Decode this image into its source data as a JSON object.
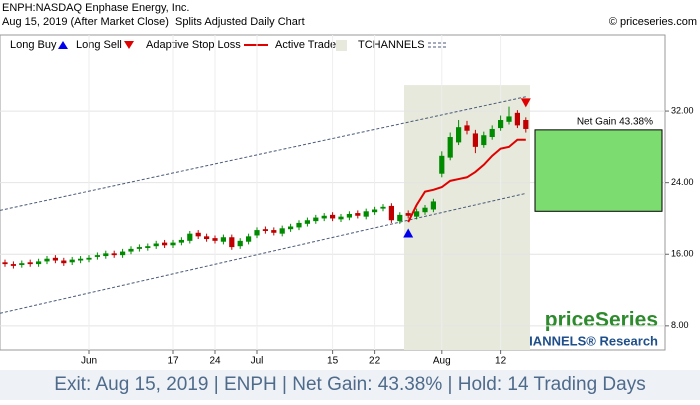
{
  "chart_data": {
    "type": "candlestick",
    "title": "ENPH:NASDAQ Enphase Energy, Inc.",
    "subtitle": "Aug 15, 2019 (After Market Close)  Splits Adjusted Daily Chart",
    "copyright": "© priceseries.com",
    "watermark": "priceSeries",
    "watermark_sub": "TCHANNELS® Research",
    "footer": "Exit: Aug 15, 2019 | ENPH | Net Gain: 43.38% | Hold: 14 Trading Days",
    "categories": [
      null,
      null,
      null,
      null,
      null,
      null,
      null,
      null,
      null,
      null,
      "Jun",
      null,
      null,
      null,
      null,
      null,
      null,
      null,
      null,
      null,
      "17",
      null,
      null,
      null,
      null,
      "24",
      null,
      null,
      null,
      null,
      "Jul",
      null,
      null,
      null,
      null,
      null,
      null,
      null,
      null,
      "15",
      null,
      null,
      null,
      null,
      "22",
      null,
      null,
      null,
      null,
      null,
      null,
      null,
      "Aug",
      null,
      null,
      null,
      null,
      null,
      null,
      "12",
      null,
      null,
      null
    ],
    "open": [
      15.1,
      14.9,
      14.8,
      15.1,
      14.9,
      15.2,
      15.6,
      15.3,
      15.1,
      15.3,
      15.4,
      15.7,
      15.8,
      16.1,
      15.9,
      16.3,
      16.6,
      16.7,
      16.9,
      17.3,
      17.0,
      17.3,
      17.5,
      18.4,
      18.0,
      17.8,
      17.4,
      17.9,
      16.9,
      17.4,
      18.1,
      18.8,
      18.7,
      18.3,
      18.8,
      19.0,
      19.4,
      19.7,
      20.0,
      20.4,
      19.9,
      20.1,
      20.6,
      20.2,
      20.7,
      21.1,
      21.4,
      19.7,
      20.6,
      20.2,
      20.7,
      21.0,
      25.0,
      26.8,
      28.5,
      30.4,
      29.5,
      28.2,
      29.1,
      30.1,
      30.8,
      31.8,
      31.0
    ],
    "high": [
      15.4,
      15.2,
      15.3,
      15.4,
      15.5,
      15.8,
      15.9,
      15.6,
      15.7,
      15.8,
      15.9,
      16.2,
      16.4,
      16.4,
      16.6,
      16.9,
      17.1,
      17.2,
      17.5,
      17.6,
      17.6,
      17.9,
      18.6,
      18.7,
      18.3,
      18.1,
      18.2,
      18.2,
      17.8,
      18.3,
      19.0,
      19.1,
      19.0,
      19.2,
      19.4,
      19.8,
      20.1,
      20.4,
      20.6,
      20.7,
      20.5,
      20.8,
      20.9,
      21.1,
      21.3,
      21.6,
      21.7,
      20.7,
      20.9,
      21.1,
      21.5,
      22.2,
      27.5,
      29.6,
      31.0,
      30.9,
      29.9,
      29.7,
      30.4,
      31.5,
      32.5,
      32.1,
      31.3
    ],
    "low": [
      14.6,
      14.4,
      14.5,
      14.6,
      14.6,
      14.9,
      15.0,
      14.7,
      14.8,
      15.0,
      15.1,
      15.4,
      15.5,
      15.6,
      15.6,
      16.0,
      16.3,
      16.4,
      16.6,
      16.7,
      16.7,
      17.0,
      17.2,
      17.7,
      17.4,
      17.2,
      17.1,
      16.5,
      16.6,
      17.1,
      17.8,
      18.3,
      18.1,
      18.0,
      18.5,
      18.7,
      19.1,
      19.4,
      19.7,
      19.7,
      19.6,
      19.8,
      20.0,
      19.9,
      20.4,
      20.8,
      19.5,
      19.4,
      20.0,
      19.9,
      20.4,
      20.7,
      24.6,
      26.5,
      28.2,
      29.4,
      27.3,
      27.9,
      28.8,
      29.8,
      30.5,
      30.1,
      29.6
    ],
    "close": [
      14.9,
      14.7,
      15.0,
      14.9,
      15.2,
      15.5,
      15.3,
      15.0,
      15.4,
      15.5,
      15.6,
      15.9,
      16.1,
      15.9,
      16.3,
      16.6,
      16.8,
      16.9,
      17.2,
      17.0,
      17.3,
      17.6,
      18.3,
      18.0,
      17.7,
      17.5,
      17.9,
      16.8,
      17.5,
      18.0,
      18.7,
      18.6,
      18.4,
      18.9,
      19.1,
      19.5,
      19.8,
      20.1,
      20.3,
      20.0,
      20.2,
      20.5,
      20.3,
      20.8,
      21.0,
      21.3,
      19.8,
      20.4,
      20.3,
      20.8,
      21.2,
      21.9,
      27.0,
      29.1,
      30.2,
      29.8,
      28.0,
      29.3,
      30.0,
      31.0,
      31.4,
      30.4,
      30.0
    ],
    "up_color": "#008a00",
    "down_color": "#c00000",
    "ylim": [
      5.3,
      40.5
    ],
    "yticks": [
      {
        "value": 32,
        "label": "32.00"
      },
      {
        "value": 24,
        "label": "24.00"
      },
      {
        "value": 16,
        "label": "16.00"
      },
      {
        "value": 8,
        "label": "8.00"
      }
    ],
    "grid": true,
    "stop_loss": {
      "name": "Adaptive Stop Loss",
      "color": "#e00000",
      "values": [
        null,
        null,
        null,
        null,
        null,
        null,
        null,
        null,
        null,
        null,
        null,
        null,
        null,
        null,
        null,
        null,
        null,
        null,
        null,
        null,
        null,
        null,
        null,
        null,
        null,
        null,
        null,
        null,
        null,
        null,
        null,
        null,
        null,
        null,
        null,
        null,
        null,
        null,
        null,
        null,
        null,
        null,
        null,
        null,
        null,
        null,
        null,
        null,
        19.6,
        21.5,
        23.0,
        23.2,
        23.5,
        24.2,
        24.4,
        24.6,
        25.2,
        26.0,
        27.0,
        27.8,
        28.0,
        28.8,
        28.8
      ]
    },
    "channel": {
      "name": "TCHANNELS",
      "color": "#4a5a78",
      "upper": [
        20.9,
        33.6
      ],
      "lower": [
        9.4,
        22.8
      ]
    },
    "active_trade": {
      "name": "Active Trade",
      "color": "#e6e9dc",
      "x": [
        48,
        62
      ],
      "top": 34.9
    },
    "buy": {
      "name": "Long Buy",
      "color": "#0000ee",
      "x": 48
    },
    "sell": {
      "name": "Long Sell",
      "color": "#e00000",
      "x": 62
    },
    "gain_box": {
      "label": "Net Gain 43.38%",
      "color": "#7ddc6f",
      "from": 20.8,
      "to": 29.9
    }
  }
}
